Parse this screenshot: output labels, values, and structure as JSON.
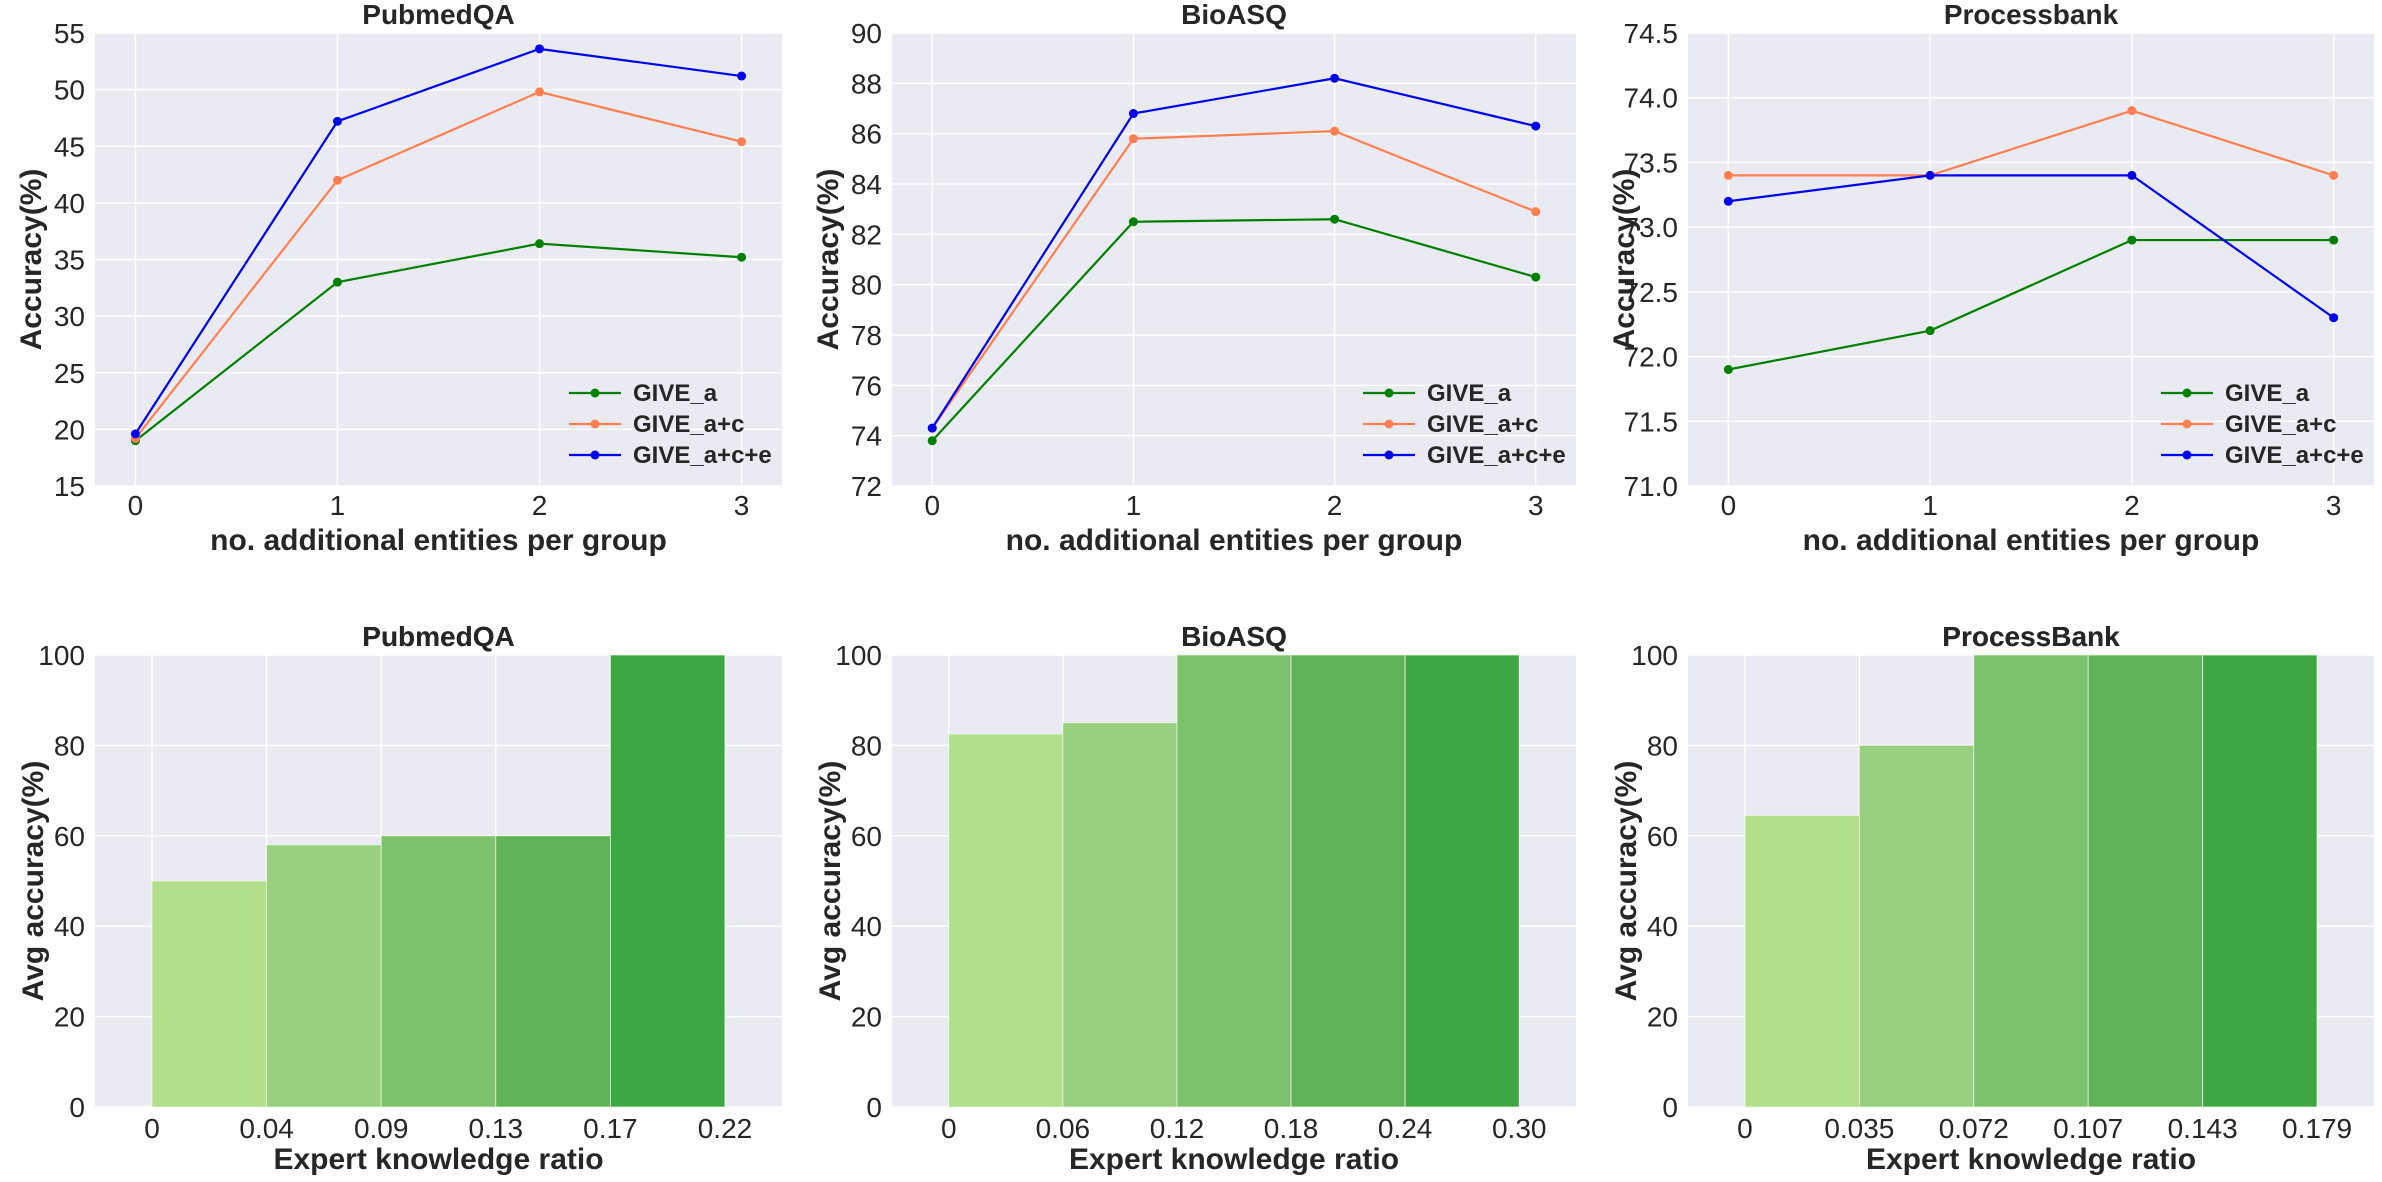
{
  "chart_data": [
    {
      "type": "line",
      "title": "PubmedQA",
      "xlabel": "no. additional entities per group",
      "ylabel": "Accuracy(%)",
      "x": [
        0,
        1,
        2,
        3
      ],
      "xticks": [
        "0",
        "1",
        "2",
        "3"
      ],
      "xlim": [
        -0.2,
        3.2
      ],
      "ylim": [
        15,
        55
      ],
      "yticks": [
        "15",
        "20",
        "25",
        "30",
        "35",
        "40",
        "45",
        "50",
        "55"
      ],
      "legend_position": "lower-right",
      "series": [
        {
          "name": "GIVE_a",
          "color": "#008000",
          "values": [
            19.0,
            33.0,
            36.4,
            35.2
          ]
        },
        {
          "name": "GIVE_a+c",
          "color": "#ff7f50",
          "values": [
            19.2,
            42.0,
            49.8,
            45.4
          ]
        },
        {
          "name": "GIVE_a+c+e",
          "color": "#0000ee",
          "values": [
            19.6,
            47.2,
            53.6,
            51.2
          ]
        }
      ]
    },
    {
      "type": "line",
      "title": "BioASQ",
      "xlabel": "no. additional entities per group",
      "ylabel": "Accuracy(%)",
      "x": [
        0,
        1,
        2,
        3
      ],
      "xticks": [
        "0",
        "1",
        "2",
        "3"
      ],
      "xlim": [
        -0.2,
        3.2
      ],
      "ylim": [
        72,
        90
      ],
      "yticks": [
        "72",
        "74",
        "76",
        "78",
        "80",
        "82",
        "84",
        "86",
        "88",
        "90"
      ],
      "legend_position": "lower-right",
      "series": [
        {
          "name": "GIVE_a",
          "color": "#008000",
          "values": [
            73.8,
            82.5,
            82.6,
            80.3
          ]
        },
        {
          "name": "GIVE_a+c",
          "color": "#ff7f50",
          "values": [
            74.3,
            85.8,
            86.1,
            82.9
          ]
        },
        {
          "name": "GIVE_a+c+e",
          "color": "#0000ee",
          "values": [
            74.3,
            86.8,
            88.2,
            86.3
          ]
        }
      ]
    },
    {
      "type": "line",
      "title": "Processbank",
      "xlabel": "no. additional entities per group",
      "ylabel": "Accuracy(%)",
      "x": [
        0,
        1,
        2,
        3
      ],
      "xticks": [
        "0",
        "1",
        "2",
        "3"
      ],
      "xlim": [
        -0.2,
        3.2
      ],
      "ylim": [
        71.0,
        74.5
      ],
      "yticks": [
        "71.0",
        "71.5",
        "72.0",
        "72.5",
        "73.0",
        "73.5",
        "74.0",
        "74.5"
      ],
      "legend_position": "lower-right",
      "series": [
        {
          "name": "GIVE_a",
          "color": "#008000",
          "values": [
            71.9,
            72.2,
            72.9,
            72.9
          ]
        },
        {
          "name": "GIVE_a+c",
          "color": "#ff7f50",
          "values": [
            73.4,
            73.4,
            73.9,
            73.4
          ]
        },
        {
          "name": "GIVE_a+c+e",
          "color": "#0000ee",
          "values": [
            73.2,
            73.4,
            73.4,
            72.3
          ]
        }
      ]
    },
    {
      "type": "bar",
      "title": "PubmedQA",
      "xlabel": "Expert knowledge ratio",
      "ylabel": "Avg accuracy(%)",
      "edges": [
        "0",
        "0.04",
        "0.09",
        "0.13",
        "0.17",
        "0.22"
      ],
      "values": [
        50,
        58,
        60,
        60,
        100
      ],
      "colors": [
        "#b2df8a",
        "#98d07f",
        "#7cc26a",
        "#5fb255",
        "#3ea642"
      ],
      "ylim": [
        0,
        100
      ],
      "yticks": [
        "0",
        "20",
        "40",
        "60",
        "80",
        "100"
      ]
    },
    {
      "type": "bar",
      "title": "BioASQ",
      "xlabel": "Expert knowledge ratio",
      "ylabel": "Avg accuracy(%)",
      "edges": [
        "0",
        "0.06",
        "0.12",
        "0.18",
        "0.24",
        "0.30"
      ],
      "values": [
        82.5,
        85,
        100,
        100,
        100
      ],
      "colors": [
        "#b2df8a",
        "#98d07f",
        "#7cc26a",
        "#5fb255",
        "#3ea642"
      ],
      "ylim": [
        0,
        100
      ],
      "yticks": [
        "0",
        "20",
        "40",
        "60",
        "80",
        "100"
      ]
    },
    {
      "type": "bar",
      "title": "ProcessBank",
      "xlabel": "Expert knowledge ratio",
      "ylabel": "Avg accuracy(%)",
      "edges": [
        "0",
        "0.035",
        "0.072",
        "0.107",
        "0.143",
        "0.179"
      ],
      "values": [
        64.5,
        80,
        100,
        100,
        100
      ],
      "colors": [
        "#b2df8a",
        "#98d07f",
        "#7cc26a",
        "#5fb255",
        "#3ea642"
      ],
      "ylim": [
        0,
        100
      ],
      "yticks": [
        "0",
        "20",
        "40",
        "60",
        "80",
        "100"
      ]
    }
  ],
  "style": {
    "plot_background": "#eaeaf2",
    "grid_color": "#ffffff",
    "text_color": "#262626"
  }
}
